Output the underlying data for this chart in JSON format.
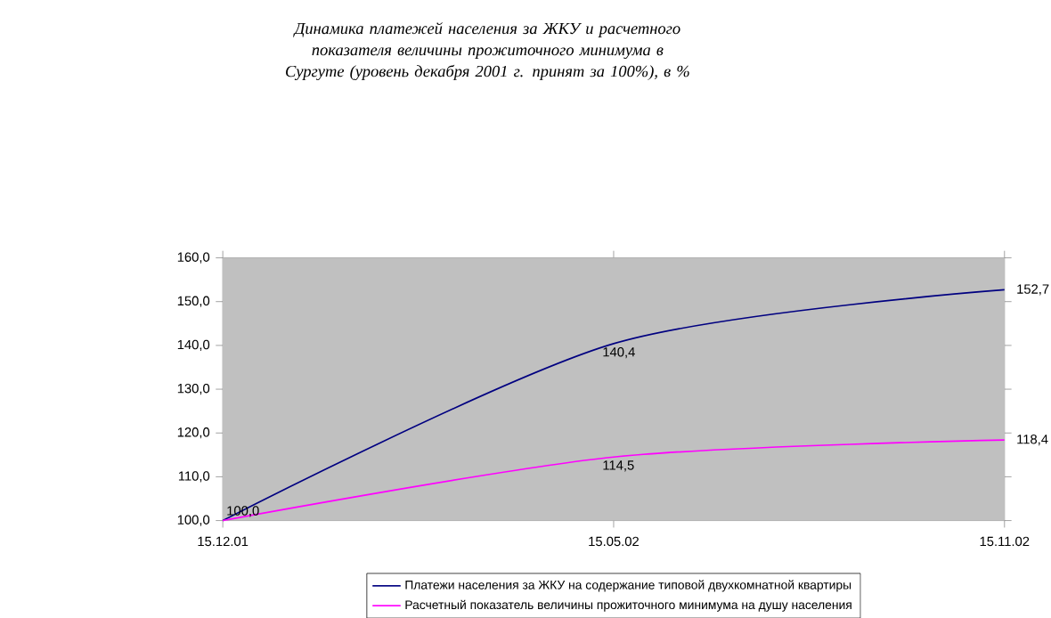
{
  "chart_data": {
    "type": "line",
    "title": "Динамика платежей населения за ЖКУ и расчетного показателя величины прожиточного минимума в Сургуте (уровень декабря 2001 г. принят за 100%), в %",
    "categories": [
      "15.12.01",
      "15.05.02",
      "15.11.02"
    ],
    "series": [
      {
        "name": "Платежи населения за ЖКУ на содержание типовой двухкомнатной квартиры",
        "color": "#000080",
        "values": [
          100.0,
          140.4,
          152.7
        ],
        "value_labels": [
          "100,0",
          "140,4",
          "152,7"
        ]
      },
      {
        "name": "Расчетный показатель величины прожиточного минимума на душу населения",
        "color": "#ff00ff",
        "values": [
          100.0,
          114.5,
          118.4
        ],
        "value_labels": [
          null,
          "114,5",
          "118,4"
        ]
      }
    ],
    "ylim": [
      100,
      160
    ],
    "yticks": [
      {
        "value": 100,
        "label": "100,0"
      },
      {
        "value": 110,
        "label": "110,0"
      },
      {
        "value": 120,
        "label": "120,0"
      },
      {
        "value": 130,
        "label": "130,0"
      },
      {
        "value": 140,
        "label": "140,0"
      },
      {
        "value": 150,
        "label": "150,0"
      },
      {
        "value": 160,
        "label": "160,0"
      }
    ],
    "legend": "bottom"
  }
}
